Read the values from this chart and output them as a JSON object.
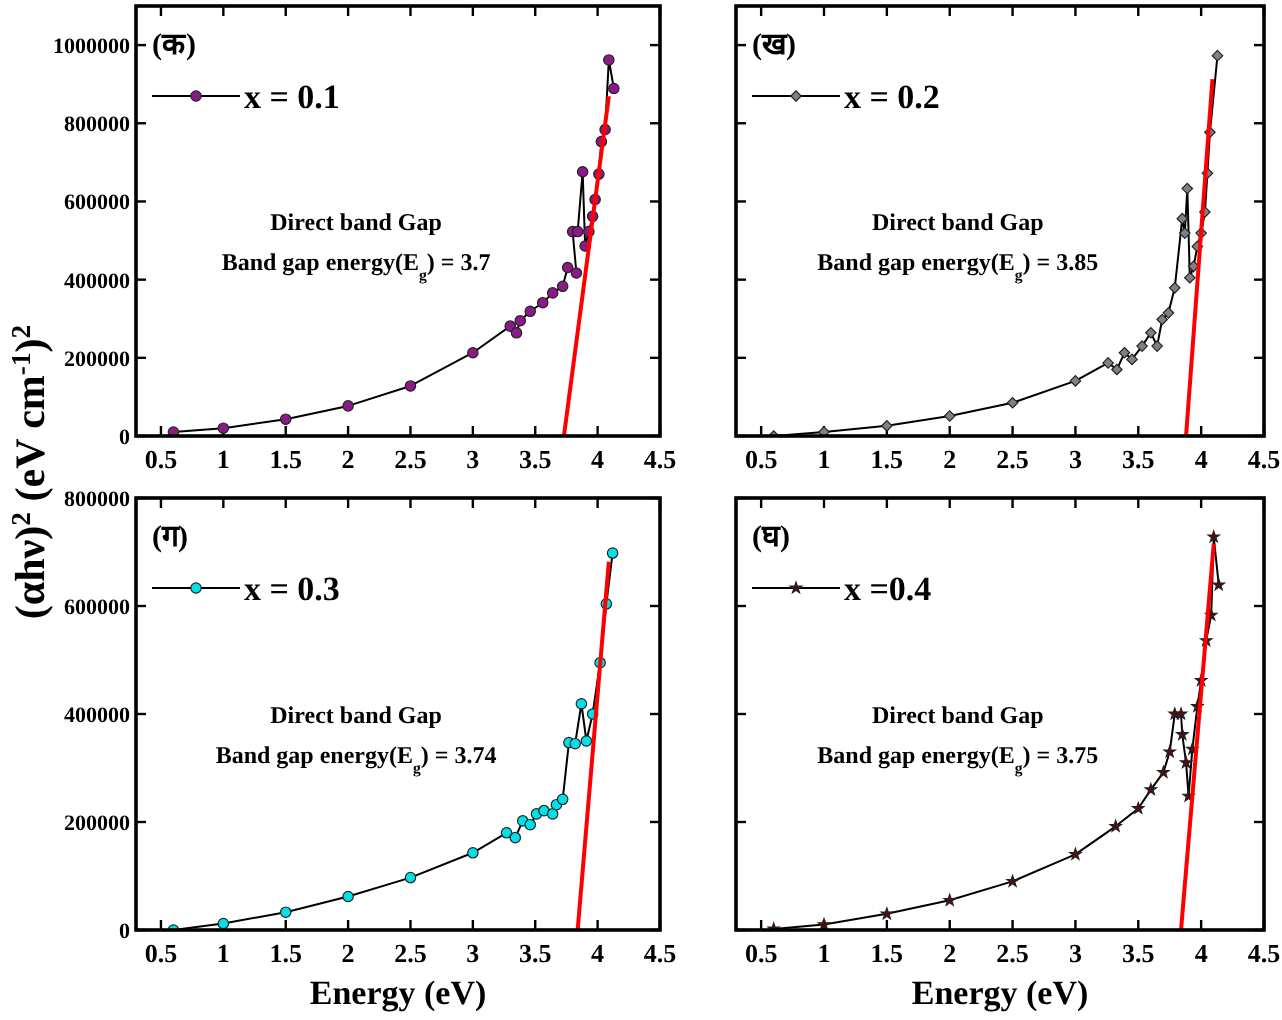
{
  "chart_data": [
    {
      "type": "line",
      "ylabel": "(αhν)$^{2}$ (eV cm$^{-1}$)$^{2}$",
      "xlim": [
        0.3,
        4.5
      ],
      "xticks": [
        0.5,
        1.0,
        1.5,
        2.0,
        2.5,
        3.0,
        3.5,
        4.0,
        4.5
      ],
      "ylim": [
        0,
        1100000
      ],
      "yticks": [
        0,
        200000,
        400000,
        600000,
        800000,
        1000000
      ],
      "grid": false,
      "legend": "top left",
      "annotations": [
        "(क)",
        "Direct band Gap",
        "Band gap energy(E$_{g}$) = 3.7"
      ],
      "series": [
        {
          "name": "x = 0.1",
          "color": "#8b1a89",
          "marker": "circle",
          "x": [
            0.6,
            1.0,
            1.5,
            2.0,
            2.5,
            3.0,
            3.3,
            3.35,
            3.38,
            3.46,
            3.56,
            3.64,
            3.72,
            3.76,
            3.83,
            3.8,
            3.84,
            3.88,
            3.9,
            3.93,
            3.96,
            3.98,
            4.01,
            4.03,
            4.06,
            4.09,
            4.13
          ],
          "values": [
            10000,
            20000,
            43000,
            77000,
            128000,
            213000,
            281000,
            264000,
            295000,
            319000,
            341000,
            366000,
            383000,
            431000,
            417000,
            523000,
            523000,
            676000,
            486000,
            523000,
            562000,
            605000,
            670000,
            753000,
            784000,
            962000,
            889000
          ]
        },
        {
          "type": "line",
          "color": "#ff0000",
          "marker": "none",
          "x": [
            3.73,
            4.09
          ],
          "values": [
            0,
            869000
          ]
        }
      ]
    },
    {
      "type": "line",
      "xlim": [
        0.3,
        4.5
      ],
      "xticks": [
        0.5,
        1.0,
        1.5,
        2.0,
        2.5,
        3.0,
        3.5,
        4.0,
        4.5
      ],
      "ylim": [
        0,
        1100000
      ],
      "yticks": [
        {
          "value": 0,
          "label": null
        },
        {
          "value": 200000,
          "label": null
        },
        {
          "value": 400000,
          "label": null
        },
        {
          "value": 600000,
          "label": null
        },
        {
          "value": 800000,
          "label": null
        },
        {
          "value": 1000000,
          "label": null
        }
      ],
      "tick_labels": "x",
      "grid": false,
      "legend": "top left",
      "annotations": [
        "(ख)",
        "Direct band Gap",
        "Band gap energy(E$_{g}$) = 3.85"
      ],
      "series": [
        {
          "name": "x = 0.2",
          "color": "#808080",
          "marker": "diamond",
          "x": [
            0.6,
            1.0,
            1.5,
            2.0,
            2.5,
            3.0,
            3.26,
            3.33,
            3.39,
            3.45,
            3.53,
            3.6,
            3.65,
            3.69,
            3.74,
            3.79,
            3.85,
            3.87,
            3.89,
            3.91,
            3.94,
            3.97,
            4.0,
            4.03,
            4.05,
            4.07,
            4.13
          ],
          "values": [
            0,
            10000,
            26000,
            51000,
            85000,
            141000,
            187000,
            170000,
            213000,
            196000,
            230000,
            264000,
            230000,
            298000,
            315000,
            379000,
            556000,
            519000,
            633000,
            405000,
            434000,
            485000,
            519000,
            573000,
            672000,
            777000,
            973000
          ]
        },
        {
          "type": "line",
          "color": "#ff0000",
          "marker": "none",
          "x": [
            3.88,
            4.09
          ],
          "values": [
            0,
            913000
          ]
        }
      ]
    },
    {
      "type": "line",
      "xlabel": "Energy (eV)",
      "xlim": [
        0.3,
        4.5
      ],
      "xticks": [
        0.5,
        1.0,
        1.5,
        2.0,
        2.5,
        3.0,
        3.5,
        4.0,
        4.5
      ],
      "ylim": [
        0,
        800000
      ],
      "yticks": [
        0,
        200000,
        400000,
        600000,
        800000
      ],
      "grid": false,
      "legend": "top left",
      "annotations": [
        "(ग)",
        "Direct band Gap",
        "Band gap energy(E$_{g}$) = 3.74"
      ],
      "series": [
        {
          "name": "x = 0.3",
          "color": "#00e0e8",
          "marker": "circle",
          "x": [
            0.6,
            1.0,
            1.5,
            2.0,
            2.5,
            3.0,
            3.27,
            3.34,
            3.4,
            3.46,
            3.51,
            3.57,
            3.64,
            3.67,
            3.72,
            3.77,
            3.82,
            3.87,
            3.91,
            3.96,
            4.02,
            4.07,
            4.12
          ],
          "values": [
            0,
            12000,
            33000,
            62000,
            97000,
            143000,
            180000,
            171000,
            202000,
            195000,
            215000,
            221000,
            215000,
            232000,
            242000,
            347000,
            345000,
            419000,
            350000,
            400000,
            495000,
            604000,
            698000
          ]
        },
        {
          "type": "line",
          "color": "#ff0000",
          "marker": "none",
          "x": [
            3.84,
            4.09
          ],
          "values": [
            0,
            682000
          ]
        }
      ]
    },
    {
      "type": "line",
      "xlabel": "Energy (eV)",
      "xlim": [
        0.3,
        4.5
      ],
      "xticks": [
        0.5,
        1.0,
        1.5,
        2.0,
        2.5,
        3.0,
        3.5,
        4.0,
        4.5
      ],
      "ylim": [
        0,
        800000
      ],
      "yticks": [
        {
          "value": 0,
          "label": null
        },
        {
          "value": 200000,
          "label": null
        },
        {
          "value": 400000,
          "label": null
        },
        {
          "value": 600000,
          "label": null
        },
        {
          "value": 800000,
          "label": null
        }
      ],
      "tick_labels": "x",
      "grid": false,
      "legend": "top left",
      "annotations": [
        "(घ)",
        "Direct band Gap",
        "Band gap energy(E$_{g}$) = 3.75"
      ],
      "series": [
        {
          "name": "x =0.4",
          "color": "#5a0a0a",
          "marker": "star",
          "x": [
            0.6,
            1.0,
            1.5,
            2.0,
            2.5,
            3.0,
            3.32,
            3.5,
            3.6,
            3.7,
            3.75,
            3.79,
            3.84,
            3.85,
            3.88,
            3.9,
            3.93,
            3.97,
            4.0,
            4.04,
            4.08,
            4.1,
            4.14
          ],
          "values": [
            2000,
            10000,
            30000,
            55000,
            90000,
            140000,
            192000,
            225000,
            260000,
            292000,
            330000,
            400000,
            400000,
            362000,
            310000,
            248000,
            335000,
            414000,
            462000,
            536000,
            583000,
            728000,
            639000
          ]
        },
        {
          "type": "line",
          "color": "#ff0000",
          "marker": "none",
          "x": [
            3.84,
            4.1
          ],
          "values": [
            0,
            715000
          ]
        }
      ]
    }
  ]
}
